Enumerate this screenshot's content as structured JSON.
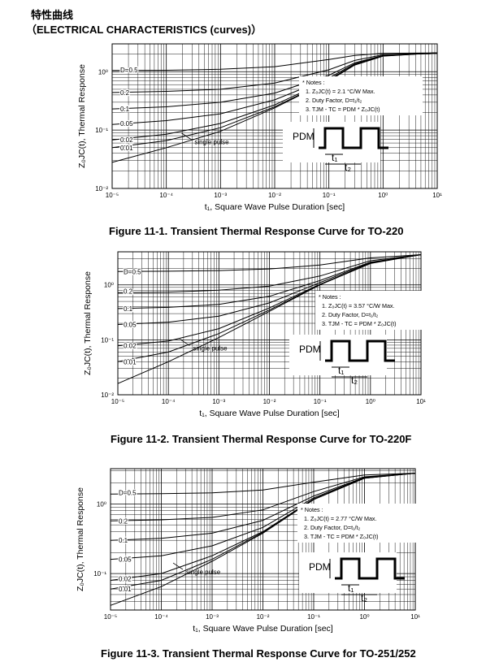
{
  "header": {
    "title_cn": "特性曲线",
    "title_en": "（ELECTRICAL CHARACTERISTICS (curves)）"
  },
  "chart_data": [
    {
      "type": "line",
      "title": "Figure 11-1. Transient Thermal Response Curve for TO-220",
      "xlabel": "t₁, Square Wave Pulse Duration [sec]",
      "ylabel": "Z₀JC(t), Thermal Response",
      "xscale": "log",
      "yscale": "log",
      "xlim": [
        1e-05,
        10
      ],
      "ylim": [
        0.01,
        3
      ],
      "x_ticks": [
        "10⁻⁵",
        "10⁻⁴",
        "10⁻³",
        "10⁻²",
        "10⁻¹",
        "10⁰",
        "10¹"
      ],
      "y_ticks": [
        "10⁰",
        "10⁻¹",
        "10⁻²"
      ],
      "grid": true,
      "notes": [
        "* Notes :",
        "1. Z₀JC(t) = 2.1 °C/W Max.",
        "2. Duty Factor, D=t₁/t₂",
        "3. TJM - TC = PDM * Z₀JC(t)"
      ],
      "annotations": [
        "PDM",
        "t₁",
        "t₂"
      ],
      "series": [
        {
          "name": "D=0.5",
          "x": [
            1e-05,
            0.0001,
            0.001,
            0.01,
            0.1,
            0.3,
            1,
            10
          ],
          "y": [
            1.05,
            1.06,
            1.1,
            1.22,
            1.62,
            1.9,
            2.07,
            2.1
          ]
        },
        {
          "name": "0.2",
          "x": [
            1e-05,
            0.0001,
            0.001,
            0.01,
            0.1,
            0.3,
            1,
            10
          ],
          "y": [
            0.44,
            0.46,
            0.5,
            0.64,
            1.08,
            1.56,
            1.95,
            2.1
          ]
        },
        {
          "name": "0.1",
          "x": [
            1e-05,
            0.0001,
            0.001,
            0.01,
            0.1,
            0.3,
            1,
            10
          ],
          "y": [
            0.23,
            0.25,
            0.3,
            0.43,
            0.87,
            1.42,
            1.9,
            2.1
          ]
        },
        {
          "name": "0.05",
          "x": [
            1e-05,
            0.0001,
            0.001,
            0.01,
            0.1,
            0.3,
            1,
            10
          ],
          "y": [
            0.125,
            0.145,
            0.19,
            0.33,
            0.78,
            1.37,
            1.88,
            2.1
          ]
        },
        {
          "name": "0.02",
          "x": [
            1e-05,
            0.0001,
            0.001,
            0.01,
            0.1,
            0.3,
            1,
            10
          ],
          "y": [
            0.068,
            0.085,
            0.13,
            0.27,
            0.73,
            1.33,
            1.87,
            2.1
          ]
        },
        {
          "name": "0.01",
          "x": [
            1e-05,
            0.0001,
            0.001,
            0.01,
            0.1,
            0.3,
            1,
            10
          ],
          "y": [
            0.05,
            0.066,
            0.11,
            0.25,
            0.71,
            1.32,
            1.86,
            2.1
          ]
        },
        {
          "name": "single pulse",
          "x": [
            1e-05,
            0.0001,
            0.001,
            0.01,
            0.1,
            0.3,
            1,
            10
          ],
          "y": [
            0.028,
            0.05,
            0.095,
            0.24,
            0.7,
            1.3,
            1.85,
            2.1
          ]
        }
      ]
    },
    {
      "type": "line",
      "title": "Figure 11-2. Transient Thermal Response Curve for TO-220F",
      "xlabel": "t₁, Square Wave Pulse Duration [sec]",
      "ylabel": "Z₀JC(t), Thermal Response",
      "xscale": "log",
      "yscale": "log",
      "xlim": [
        1e-05,
        10
      ],
      "ylim": [
        0.01,
        4
      ],
      "x_ticks": [
        "10⁻⁵",
        "10⁻⁴",
        "10⁻³",
        "10⁻²",
        "10⁻¹",
        "10⁰",
        "10¹"
      ],
      "y_ticks": [
        "10⁰",
        "10⁻¹",
        "10⁻²"
      ],
      "grid": true,
      "notes": [
        "* Notes :",
        "1. Z₀JC(t) = 3.57 °C/W Max.",
        "2. Duty Factor, D=t₁/t₂",
        "3. TJM - TC = PDM * Z₀JC(t)"
      ],
      "annotations": [
        "PDM",
        "t₁",
        "t₂"
      ],
      "series": [
        {
          "name": "D=0.5",
          "x": [
            1e-05,
            0.0001,
            0.001,
            0.01,
            0.1,
            1,
            10
          ],
          "y": [
            1.75,
            1.77,
            1.82,
            1.95,
            2.3,
            3.1,
            3.55
          ]
        },
        {
          "name": "0.2",
          "x": [
            1e-05,
            0.0001,
            0.001,
            0.01,
            0.1,
            1,
            10
          ],
          "y": [
            0.72,
            0.74,
            0.8,
            0.95,
            1.45,
            2.75,
            3.55
          ]
        },
        {
          "name": "0.1",
          "x": [
            1e-05,
            0.0001,
            0.001,
            0.01,
            0.1,
            1,
            10
          ],
          "y": [
            0.37,
            0.39,
            0.44,
            0.62,
            1.2,
            2.6,
            3.55
          ]
        },
        {
          "name": "0.05",
          "x": [
            1e-05,
            0.0001,
            0.001,
            0.01,
            0.1,
            1,
            10
          ],
          "y": [
            0.19,
            0.21,
            0.27,
            0.47,
            1.1,
            2.55,
            3.55
          ]
        },
        {
          "name": "0.02",
          "x": [
            1e-05,
            0.0001,
            0.001,
            0.01,
            0.1,
            1,
            10
          ],
          "y": [
            0.078,
            0.095,
            0.16,
            0.38,
            1.03,
            2.5,
            3.55
          ]
        },
        {
          "name": "0.01",
          "x": [
            1e-05,
            0.0001,
            0.001,
            0.01,
            0.1,
            1,
            10
          ],
          "y": [
            0.04,
            0.06,
            0.13,
            0.35,
            1.01,
            2.48,
            3.55
          ]
        },
        {
          "name": "single pulse",
          "x": [
            1e-05,
            0.0001,
            0.001,
            0.01,
            0.1,
            1,
            10
          ],
          "y": [
            0.016,
            0.04,
            0.11,
            0.33,
            1.0,
            2.45,
            3.55
          ]
        }
      ]
    },
    {
      "type": "line",
      "title": "Figure 11-3. Transient Thermal Response Curve for TO-251/252",
      "xlabel": "t₁, Square Wave Pulse Duration [sec]",
      "ylabel": "Z₀JC(t), Thermal Response",
      "xscale": "log",
      "yscale": "log",
      "xlim": [
        1e-05,
        10
      ],
      "ylim": [
        0.03,
        3.2
      ],
      "x_ticks": [
        "10⁻⁵",
        "10⁻⁴",
        "10⁻³",
        "10⁻²",
        "10⁻¹",
        "10⁰",
        "10¹"
      ],
      "y_ticks": [
        "10⁰",
        "10⁻¹"
      ],
      "grid": true,
      "notes": [
        "* Notes :",
        "1. Z₀JC(t) = 2.77 °C/W Max.",
        "2. Duty Factor, D=t₁/t₂",
        "3. TJM - TC = PDM * Z₀JC(t)"
      ],
      "annotations": [
        "PDM",
        "t₁",
        "t₂"
      ],
      "series": [
        {
          "name": "D=0.5",
          "x": [
            1e-05,
            0.0001,
            0.001,
            0.01,
            0.1,
            1,
            10
          ],
          "y": [
            1.38,
            1.4,
            1.44,
            1.58,
            2.05,
            2.6,
            2.75
          ]
        },
        {
          "name": "0.2",
          "x": [
            1e-05,
            0.0001,
            0.001,
            0.01,
            0.1,
            1,
            10
          ],
          "y": [
            0.57,
            0.59,
            0.64,
            0.82,
            1.5,
            2.45,
            2.75
          ]
        },
        {
          "name": "0.1",
          "x": [
            1e-05,
            0.0001,
            0.001,
            0.01,
            0.1,
            1,
            10
          ],
          "y": [
            0.3,
            0.32,
            0.38,
            0.58,
            1.3,
            2.4,
            2.75
          ]
        },
        {
          "name": "0.05",
          "x": [
            1e-05,
            0.0001,
            0.001,
            0.01,
            0.1,
            1,
            10
          ],
          "y": [
            0.16,
            0.18,
            0.25,
            0.46,
            1.22,
            2.38,
            2.75
          ]
        },
        {
          "name": "0.02",
          "x": [
            1e-05,
            0.0001,
            0.001,
            0.01,
            0.1,
            1,
            10
          ],
          "y": [
            0.08,
            0.1,
            0.18,
            0.4,
            1.18,
            2.35,
            2.75
          ]
        },
        {
          "name": "0.01",
          "x": [
            1e-05,
            0.0001,
            0.001,
            0.01,
            0.1,
            1,
            10
          ],
          "y": [
            0.06,
            0.08,
            0.16,
            0.39,
            1.16,
            2.34,
            2.75
          ]
        },
        {
          "name": "single pulse",
          "x": [
            1e-05,
            0.0001,
            0.001,
            0.01,
            0.1,
            1,
            10
          ],
          "y": [
            0.035,
            0.065,
            0.15,
            0.38,
            1.15,
            2.33,
            2.75
          ]
        }
      ]
    }
  ]
}
